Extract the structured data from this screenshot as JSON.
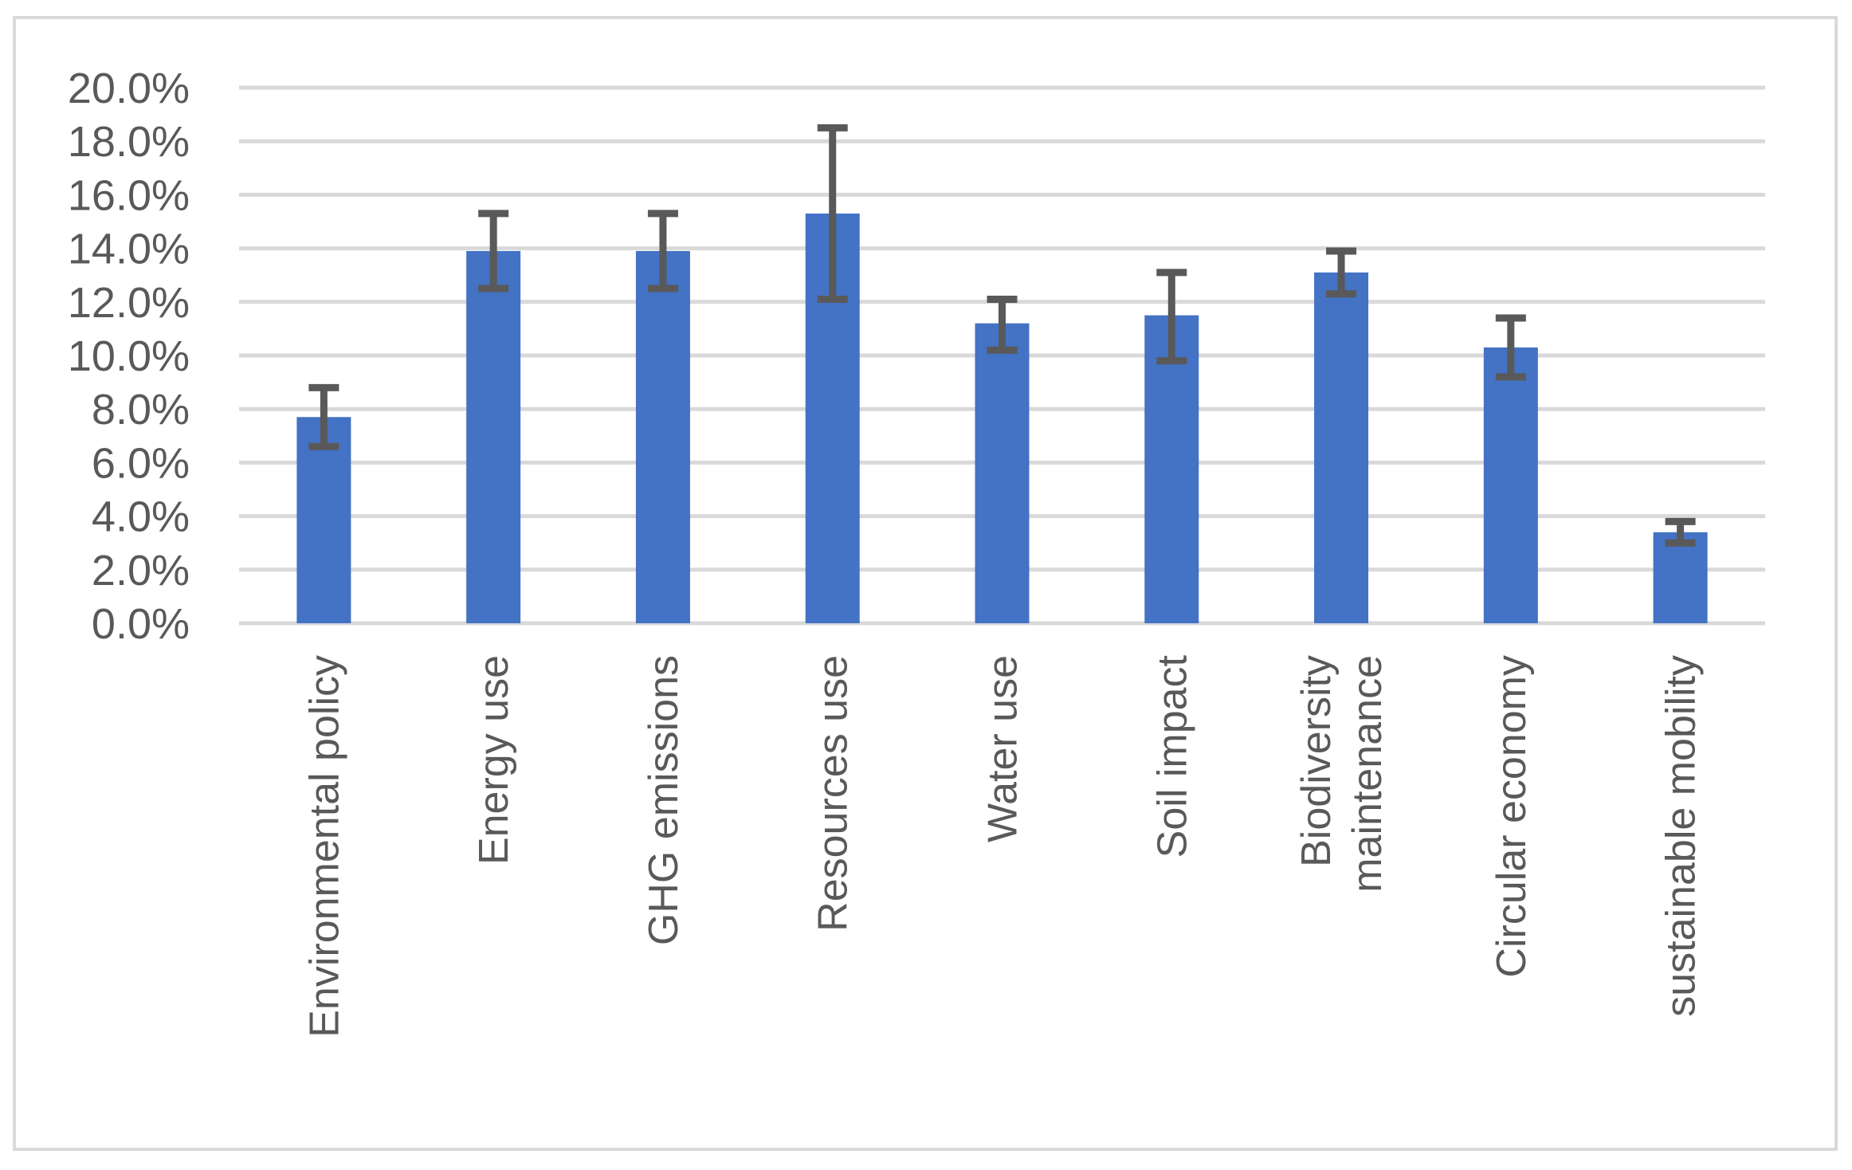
{
  "chart_data": {
    "type": "bar",
    "title": "",
    "xlabel": "",
    "ylabel": "",
    "categories": [
      [
        "Environmental policy"
      ],
      [
        "Energy use"
      ],
      [
        "GHG emissions"
      ],
      [
        "Resources use"
      ],
      [
        "Water use"
      ],
      [
        "Soil impact"
      ],
      [
        "Biodiversity",
        "maintenance"
      ],
      [
        "Circular economy"
      ],
      [
        "sustainable mobility"
      ]
    ],
    "series": [
      {
        "values": [
          7.7,
          13.9,
          13.9,
          15.3,
          11.2,
          11.5,
          13.1,
          10.3,
          3.4
        ],
        "error_low": [
          6.6,
          12.5,
          12.5,
          12.1,
          10.2,
          9.8,
          12.3,
          9.2,
          3.0
        ],
        "error_high": [
          8.8,
          15.3,
          15.3,
          18.5,
          12.1,
          13.1,
          13.9,
          11.4,
          3.8
        ],
        "color": "#4472C4"
      }
    ],
    "ylim": [
      0,
      20
    ],
    "yticks": [
      "0.0%",
      "2.0%",
      "4.0%",
      "6.0%",
      "8.0%",
      "10.0%",
      "12.0%",
      "14.0%",
      "16.0%",
      "18.0%",
      "20.0%"
    ],
    "grid": true,
    "legend": "none",
    "error_bar_color": "#595959",
    "gridline_color": "#D9D9D9",
    "border_color": "#D9D9D9"
  }
}
